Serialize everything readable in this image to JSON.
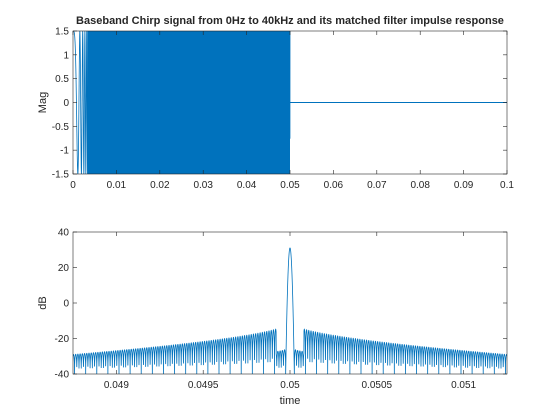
{
  "chart_data": [
    {
      "type": "line",
      "title": "Baseband Chirp signal from 0Hz to 40kHz and its matched filter impulse response",
      "xlabel": "",
      "ylabel": "Mag",
      "xlim": [
        0,
        0.1
      ],
      "ylim": [
        -1.5,
        1.5
      ],
      "xticks": [
        "0",
        "0.01",
        "0.02",
        "0.03",
        "0.04",
        "0.05",
        "0.06",
        "0.07",
        "0.08",
        "0.09",
        "0.1"
      ],
      "yticks": [
        "-1.5",
        "-1",
        "-0.5",
        "0",
        "0.5",
        "1",
        "1.5"
      ],
      "grid": false,
      "series": [
        {
          "color": "#0072BD",
          "description_values": {
            "chirp_start_hz": 0,
            "chirp_end_hz": 40000,
            "chirp_start_time": 0,
            "chirp_end_time": 0.05,
            "amplitude": 1.5,
            "after_chirp_value": 0
          }
        }
      ]
    },
    {
      "type": "line",
      "title": "",
      "xlabel": "time",
      "ylabel": "dB",
      "xlim": [
        0.04875,
        0.05125
      ],
      "ylim": [
        -40,
        40
      ],
      "xticks": [
        "0.049",
        "0.0495",
        "0.05",
        "0.0505",
        "0.051"
      ],
      "yticks": [
        "-40",
        "-20",
        "0",
        "20",
        "40"
      ],
      "grid": false,
      "series": [
        {
          "color": "#0072BD",
          "peak_x": 0.05,
          "peak_db": 31,
          "sidelobe_edge_db": -29,
          "sidelobe_near_peak_db": -12,
          "null_floor_db": -40
        }
      ]
    }
  ]
}
